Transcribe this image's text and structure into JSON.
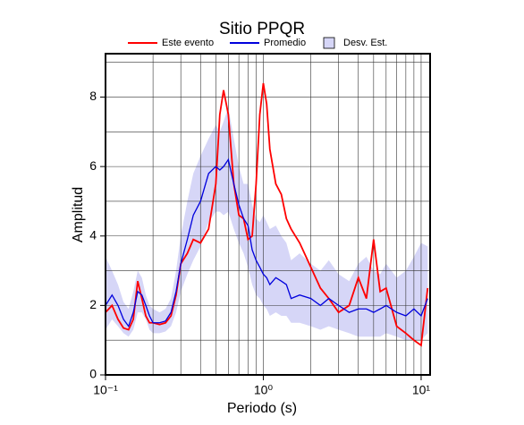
{
  "chart_data": {
    "type": "line",
    "title": "Sitio PPQR",
    "x_label": "Periodo (s)",
    "y_label": "Amplitud",
    "log_x": true,
    "grid": true,
    "xlim": [
      0.1,
      11.4
    ],
    "ylim": [
      0,
      9.25
    ],
    "xticks": [
      {
        "value": 0.1,
        "label": "10⁻¹"
      },
      {
        "value": 1,
        "label": "10⁰"
      },
      {
        "value": 10,
        "label": "10¹"
      }
    ],
    "xminorticks": [
      0.2,
      0.3,
      0.4,
      0.5,
      0.6,
      0.7,
      0.8,
      0.9,
      2,
      3,
      4,
      5,
      6,
      7,
      8,
      9
    ],
    "yticks": [
      0,
      2,
      4,
      6,
      8
    ],
    "yminorticks": [
      1,
      3,
      5,
      7,
      9
    ],
    "x": [
      0.1,
      0.11,
      0.12,
      0.13,
      0.14,
      0.15,
      0.16,
      0.17,
      0.18,
      0.19,
      0.2,
      0.22,
      0.24,
      0.26,
      0.28,
      0.3,
      0.33,
      0.36,
      0.4,
      0.45,
      0.5,
      0.53,
      0.56,
      0.6,
      0.65,
      0.7,
      0.75,
      0.8,
      0.85,
      0.9,
      0.95,
      1.0,
      1.05,
      1.1,
      1.2,
      1.3,
      1.4,
      1.5,
      1.7,
      2.0,
      2.3,
      2.6,
      3.0,
      3.5,
      4.0,
      4.5,
      5.0,
      5.5,
      6.0,
      7.0,
      8.0,
      9.0,
      10,
      11
    ],
    "band": {
      "name": "Desv. Est.",
      "color": "#d6d6f7",
      "upper": [
        3.4,
        3.0,
        2.6,
        2.1,
        1.9,
        2.4,
        3.0,
        2.8,
        2.3,
        2.0,
        1.9,
        1.8,
        1.9,
        2.2,
        3.0,
        4.0,
        5.0,
        5.8,
        6.3,
        6.8,
        7.2,
        7.0,
        7.3,
        7.7,
        6.8,
        6.0,
        5.5,
        5.5,
        4.9,
        4.5,
        4.4,
        4.6,
        4.4,
        4.2,
        4.3,
        4.0,
        3.8,
        3.3,
        3.5,
        3.2,
        3.0,
        3.3,
        2.9,
        2.7,
        3.2,
        3.4,
        3.0,
        2.9,
        3.2,
        2.8,
        3.0,
        3.4,
        3.8,
        3.7
      ],
      "lower": [
        1.3,
        1.6,
        1.4,
        1.2,
        1.1,
        1.3,
        1.8,
        1.8,
        1.6,
        1.3,
        1.2,
        1.2,
        1.25,
        1.4,
        1.8,
        2.4,
        2.9,
        3.3,
        3.7,
        4.4,
        4.7,
        4.7,
        4.6,
        4.7,
        4.2,
        3.8,
        3.5,
        3.1,
        2.6,
        2.3,
        2.2,
        2.0,
        1.9,
        1.7,
        1.8,
        1.7,
        1.7,
        1.5,
        1.5,
        1.4,
        1.3,
        1.4,
        1.3,
        1.2,
        1.1,
        1.1,
        1.1,
        1.1,
        1.2,
        1.1,
        1.0,
        1.0,
        1.0,
        1.2
      ]
    },
    "series": [
      {
        "name": "Este evento",
        "color": "#ff0000",
        "values": [
          1.8,
          2.0,
          1.6,
          1.35,
          1.3,
          1.6,
          2.7,
          2.2,
          1.7,
          1.5,
          1.5,
          1.45,
          1.5,
          1.7,
          2.3,
          3.2,
          3.5,
          3.9,
          3.8,
          4.2,
          5.5,
          7.5,
          8.2,
          7.5,
          5.5,
          4.6,
          4.5,
          3.9,
          4.0,
          5.5,
          7.5,
          8.4,
          7.8,
          6.5,
          5.5,
          5.2,
          4.5,
          4.2,
          3.8,
          3.1,
          2.5,
          2.2,
          1.8,
          2.0,
          2.8,
          2.2,
          3.9,
          2.4,
          2.5,
          1.4,
          1.2,
          1.0,
          0.85,
          2.5
        ]
      },
      {
        "name": "Promedio",
        "color": "#0000dd",
        "values": [
          2.0,
          2.3,
          2.0,
          1.6,
          1.4,
          1.8,
          2.4,
          2.3,
          2.0,
          1.7,
          1.5,
          1.5,
          1.55,
          1.8,
          2.4,
          3.2,
          3.9,
          4.6,
          5.0,
          5.8,
          6.0,
          5.9,
          6.0,
          6.2,
          5.5,
          4.9,
          4.5,
          4.3,
          3.6,
          3.3,
          3.1,
          2.9,
          2.8,
          2.6,
          2.8,
          2.7,
          2.6,
          2.2,
          2.3,
          2.2,
          2.0,
          2.2,
          2.0,
          1.8,
          1.9,
          1.9,
          1.8,
          1.9,
          2.0,
          1.8,
          1.7,
          1.9,
          1.7,
          2.2
        ]
      }
    ]
  }
}
